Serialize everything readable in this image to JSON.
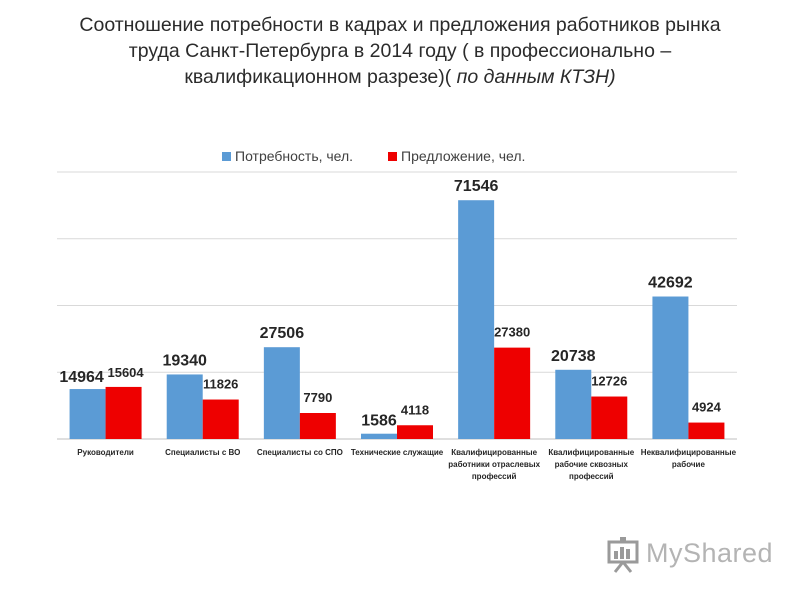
{
  "title": {
    "line1": "Соотношение потребности в кадрах и предложения работников рынка",
    "line2": "труда Санкт-Петербурга в 2014 году ( в профессионально –",
    "line3_plain": "квалификационном разрезе)( ",
    "line3_italic": "по данным КТЗН)"
  },
  "colors": {
    "demand": "#5b9bd5",
    "supply": "#ee0000",
    "grid": "#d9d9d9",
    "axis": "#bfbfbf",
    "text": "#262626"
  },
  "chart_data": {
    "type": "bar",
    "categories": [
      [
        "Руководители"
      ],
      [
        "Специалисты с ВО"
      ],
      [
        "Специалисты со СПО"
      ],
      [
        "Технические служащие"
      ],
      [
        "Квалифицированные",
        "работники отраслевых",
        "профессий"
      ],
      [
        "Квалифицированные",
        "рабочие сквозных",
        "профессий"
      ],
      [
        "Неквалифицированные",
        "рабочие"
      ]
    ],
    "series": [
      {
        "name": "Потребность, чел.",
        "values": [
          14964,
          19340,
          27506,
          1586,
          71546,
          20738,
          42692
        ]
      },
      {
        "name": "Предложение, чел.",
        "values": [
          15604,
          11826,
          7790,
          4118,
          27380,
          12726,
          4924
        ]
      }
    ],
    "ylim": [
      0,
      80000
    ],
    "gridlines": [
      0,
      20000,
      40000,
      60000,
      80000
    ],
    "legend_position": "top-center",
    "grid": true
  },
  "watermark": {
    "text": "MyShared",
    "icon": "presentation-board-icon"
  }
}
